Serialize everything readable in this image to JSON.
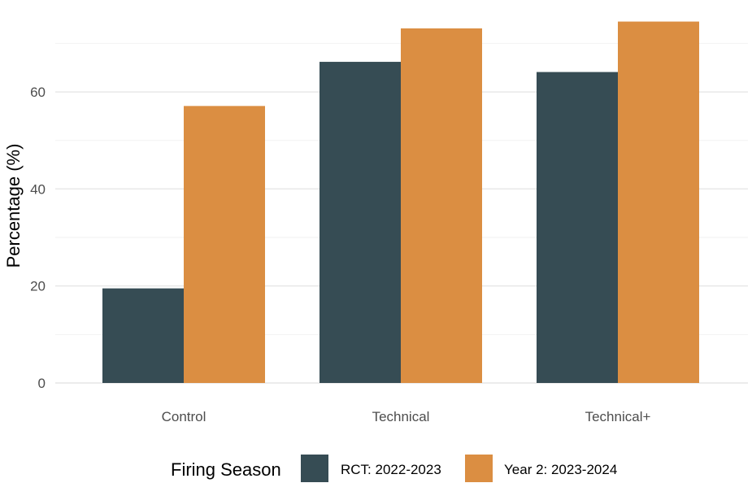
{
  "chart_data": {
    "type": "bar",
    "title": "",
    "xlabel": "",
    "ylabel": "Percentage (%)",
    "categories": [
      "Control",
      "Technical",
      "Technical+"
    ],
    "series": [
      {
        "name": "RCT: 2022-2023",
        "color": "#364C54",
        "values": [
          19.5,
          66.2,
          64.1
        ]
      },
      {
        "name": "Year 2: 2023-2024",
        "color": "#DB8E42",
        "values": [
          57.1,
          73.1,
          74.5
        ]
      }
    ],
    "ylim": [
      0,
      76
    ],
    "yticks": [
      0,
      20,
      40,
      60
    ],
    "ytick_labels": [
      "0",
      "20",
      "40",
      "60"
    ],
    "grid": true,
    "legend": {
      "title": "Firing Season",
      "position": "bottom"
    }
  }
}
